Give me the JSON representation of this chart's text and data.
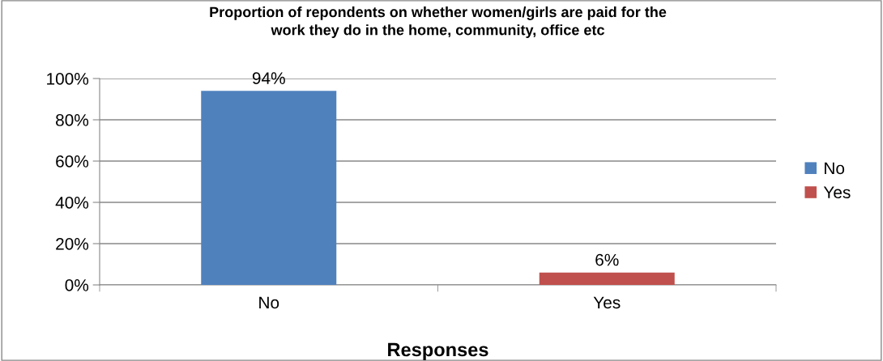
{
  "chart_data": {
    "type": "bar",
    "title": "Proportion of repondents on whether women/girls are paid for the\nwork they do in the home, community, office etc",
    "xlabel": "Responses",
    "categories": [
      "No",
      "Yes"
    ],
    "series": [
      {
        "name": "No",
        "color": "#4f81bd",
        "values": [
          94,
          null
        ],
        "value_labels": [
          "94%",
          null
        ]
      },
      {
        "name": "Yes",
        "color": "#c0504d",
        "values": [
          null,
          6
        ],
        "value_labels": [
          null,
          "6%"
        ]
      }
    ],
    "ylim": [
      0,
      100
    ],
    "yticks": [
      {
        "value": 0,
        "label": "0%"
      },
      {
        "value": 20,
        "label": "20%"
      },
      {
        "value": 40,
        "label": "40%"
      },
      {
        "value": 60,
        "label": "60%"
      },
      {
        "value": 80,
        "label": "80%"
      },
      {
        "value": 100,
        "label": "100%"
      }
    ],
    "grid": "y",
    "legend": "right"
  }
}
